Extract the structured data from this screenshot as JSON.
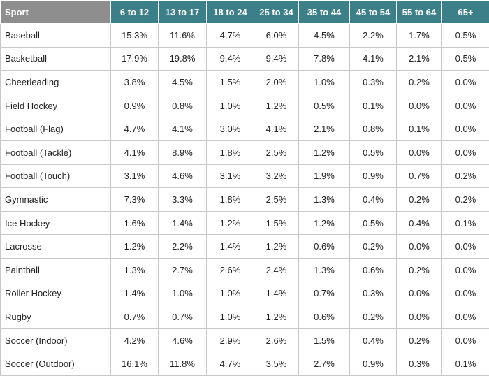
{
  "table": {
    "header": [
      "Sport",
      "6 to 12",
      "13 to 17",
      "18 to 24",
      "25 to 34",
      "35 to 44",
      "45 to 54",
      "55 to 64",
      "65+"
    ],
    "rows": [
      [
        "Baseball",
        "15.3%",
        "11.6%",
        "4.7%",
        "6.0%",
        "4.5%",
        "2.2%",
        "1.7%",
        "0.5%"
      ],
      [
        "Basketball",
        "17.9%",
        "19.8%",
        "9.4%",
        "9.4%",
        "7.8%",
        "4.1%",
        "2.1%",
        "0.5%"
      ],
      [
        "Cheerleading",
        "3.8%",
        "4.5%",
        "1.5%",
        "2.0%",
        "1.0%",
        "0.3%",
        "0.2%",
        "0.0%"
      ],
      [
        "Field Hockey",
        "0.9%",
        "0.8%",
        "1.0%",
        "1.2%",
        "0.5%",
        "0.1%",
        "0.0%",
        "0.0%"
      ],
      [
        "Football (Flag)",
        "4.7%",
        "4.1%",
        "3.0%",
        "4.1%",
        "2.1%",
        "0.8%",
        "0.1%",
        "0.0%"
      ],
      [
        "Football (Tackle)",
        "4.1%",
        "8.9%",
        "1.8%",
        "2.5%",
        "1.2%",
        "0.5%",
        "0.0%",
        "0.0%"
      ],
      [
        "Football (Touch)",
        "3.1%",
        "4.6%",
        "3.1%",
        "3.2%",
        "1.9%",
        "0.9%",
        "0.7%",
        "0.2%"
      ],
      [
        "Gymnastic",
        "7.3%",
        "3.3%",
        "1.8%",
        "2.5%",
        "1.3%",
        "0.4%",
        "0.2%",
        "0.2%"
      ],
      [
        "Ice Hockey",
        "1.6%",
        "1.4%",
        "1.2%",
        "1.5%",
        "1.2%",
        "0.5%",
        "0.4%",
        "0.1%"
      ],
      [
        "Lacrosse",
        "1.2%",
        "2.2%",
        "1.4%",
        "1.2%",
        "0.6%",
        "0.2%",
        "0.0%",
        "0.0%"
      ],
      [
        "Paintball",
        "1.3%",
        "2.7%",
        "2.6%",
        "2.4%",
        "1.3%",
        "0.6%",
        "0.2%",
        "0.0%"
      ],
      [
        "Roller Hockey",
        "1.4%",
        "1.0%",
        "1.0%",
        "1.4%",
        "0.7%",
        "0.3%",
        "0.0%",
        "0.0%"
      ],
      [
        "Rugby",
        "0.7%",
        "0.7%",
        "1.0%",
        "1.2%",
        "0.6%",
        "0.2%",
        "0.0%",
        "0.0%"
      ],
      [
        "Soccer (Indoor)",
        "4.2%",
        "4.6%",
        "2.9%",
        "2.6%",
        "1.5%",
        "0.4%",
        "0.2%",
        "0.0%"
      ],
      [
        "Soccer (Outdoor)",
        "16.1%",
        "11.8%",
        "4.7%",
        "3.5%",
        "2.7%",
        "0.9%",
        "0.3%",
        "0.1%"
      ]
    ]
  }
}
